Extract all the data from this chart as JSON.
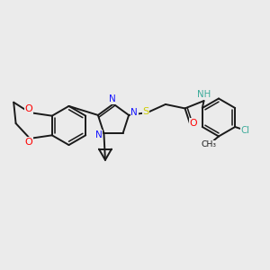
{
  "background_color": "#ebebeb",
  "bond_color": "#1a1a1a",
  "n_color": "#1414ff",
  "o_color": "#ff0000",
  "s_color": "#cccc00",
  "cl_color": "#3aaa99",
  "h_color": "#3aaa99",
  "font_size": 7.0,
  "line_width": 1.4,
  "figsize": [
    3.0,
    3.0
  ],
  "dpi": 100,
  "xlim": [
    0,
    10
  ],
  "ylim": [
    0,
    10
  ]
}
